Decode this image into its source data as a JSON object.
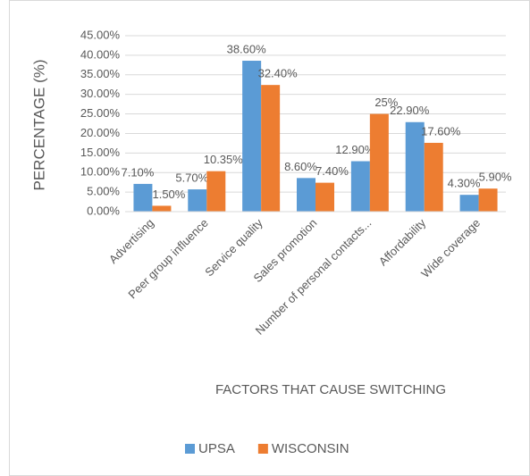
{
  "chart_data": {
    "type": "bar",
    "categories": [
      "Advertising",
      "Peer group influence",
      "Service quality",
      "Sales promotion",
      "Number of personal contacts...",
      "Affordability",
      "Wide coverage"
    ],
    "series": [
      {
        "name": "UPSA",
        "color": "#5b9bd5",
        "values": [
          7.1,
          5.7,
          38.6,
          8.6,
          12.9,
          22.9,
          4.3
        ],
        "value_labels": [
          "7.10%",
          "5.70%",
          "38.60%",
          "8.60%",
          "12.90%",
          "22.90%",
          "4.30%"
        ]
      },
      {
        "name": "WISCONSIN",
        "color": "#ed7d31",
        "values": [
          1.5,
          10.35,
          32.4,
          7.4,
          25,
          17.6,
          5.9
        ],
        "value_labels": [
          "1.50%",
          "10.35%",
          "32.40%",
          "7.40%",
          "25%",
          "17.60%",
          "5.90%"
        ]
      }
    ],
    "xlabel": "FACTORS THAT CAUSE SWITCHING",
    "ylabel": "PERCENTAGE (%)",
    "ylim": [
      0,
      45
    ],
    "yticks": [
      {
        "value": 0,
        "label": "0.00%"
      },
      {
        "value": 5,
        "label": "5.00%"
      },
      {
        "value": 10,
        "label": "10.00%"
      },
      {
        "value": 15,
        "label": "15.00%"
      },
      {
        "value": 20,
        "label": "20.00%"
      },
      {
        "value": 25,
        "label": "25.00%"
      },
      {
        "value": 30,
        "label": "30.00%"
      },
      {
        "value": 35,
        "label": "35.00%"
      },
      {
        "value": 40,
        "label": "40.00%"
      },
      {
        "value": 45,
        "label": "45.00%"
      }
    ],
    "grid": true,
    "legend": "bottom"
  }
}
